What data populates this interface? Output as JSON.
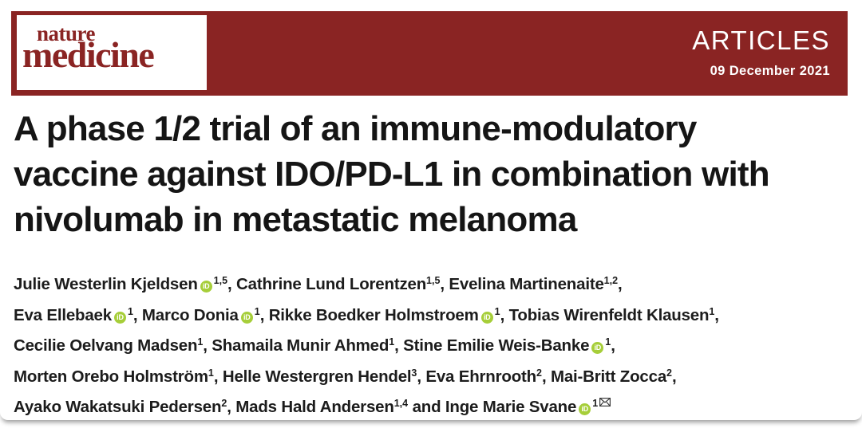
{
  "colors": {
    "banner_red": "#8a2423",
    "orcid_green": "#a6ce39",
    "title_text": "#151515"
  },
  "journal": {
    "logo_top": "nature",
    "logo_bottom": "medicine",
    "section": "ARTICLES",
    "date": "09 December 2021"
  },
  "title_lines": [
    "A phase 1/2 trial of an immune-modulatory",
    "vaccine against IDO/PD-L1 in combination with",
    "nivolumab in metastatic melanoma"
  ],
  "authors": {
    "orcid_icon_text": "iD",
    "lines": [
      {
        "segments": [
          {
            "pre": "",
            "name": "Julie Westerlin Kjeldsen",
            "orcid": true,
            "sup": "1,5",
            "env": false
          },
          {
            "pre": ", ",
            "name": "Cathrine Lund Lorentzen",
            "orcid": false,
            "sup": "1,5",
            "env": false
          },
          {
            "pre": ", ",
            "name": "Evelina Martinenaite",
            "orcid": false,
            "sup": "1,2",
            "env": false
          }
        ],
        "trail": ","
      },
      {
        "segments": [
          {
            "pre": "",
            "name": "Eva Ellebaek",
            "orcid": true,
            "sup": "1",
            "env": false
          },
          {
            "pre": ", ",
            "name": "Marco Donia",
            "orcid": true,
            "sup": "1",
            "env": false
          },
          {
            "pre": ", ",
            "name": "Rikke Boedker Holmstroem",
            "orcid": true,
            "sup": "1",
            "env": false
          },
          {
            "pre": ", ",
            "name": "Tobias Wirenfeldt Klausen",
            "orcid": false,
            "sup": "1",
            "env": false
          }
        ],
        "trail": ","
      },
      {
        "segments": [
          {
            "pre": "",
            "name": "Cecilie Oelvang Madsen",
            "orcid": false,
            "sup": "1",
            "env": false
          },
          {
            "pre": ", ",
            "name": "Shamaila Munir Ahmed",
            "orcid": false,
            "sup": "1",
            "env": false
          },
          {
            "pre": ", ",
            "name": "Stine Emilie Weis-Banke",
            "orcid": true,
            "sup": "1",
            "env": false
          }
        ],
        "trail": ","
      },
      {
        "segments": [
          {
            "pre": "",
            "name": "Morten Orebo Holmström",
            "orcid": false,
            "sup": "1",
            "env": false
          },
          {
            "pre": ", ",
            "name": "Helle Westergren Hendel",
            "orcid": false,
            "sup": "3",
            "env": false
          },
          {
            "pre": ", ",
            "name": "Eva Ehrnrooth",
            "orcid": false,
            "sup": "2",
            "env": false
          },
          {
            "pre": ", ",
            "name": "Mai-Britt Zocca",
            "orcid": false,
            "sup": "2",
            "env": false
          }
        ],
        "trail": ","
      },
      {
        "segments": [
          {
            "pre": "",
            "name": "Ayako Wakatsuki Pedersen",
            "orcid": false,
            "sup": "2",
            "env": false
          },
          {
            "pre": ", ",
            "name": "Mads Hald Andersen",
            "orcid": false,
            "sup": "1,4",
            "env": false
          },
          {
            "pre": " and ",
            "name": "Inge Marie Svane",
            "orcid": true,
            "sup": "1",
            "env": true
          }
        ],
        "trail": ""
      }
    ]
  }
}
